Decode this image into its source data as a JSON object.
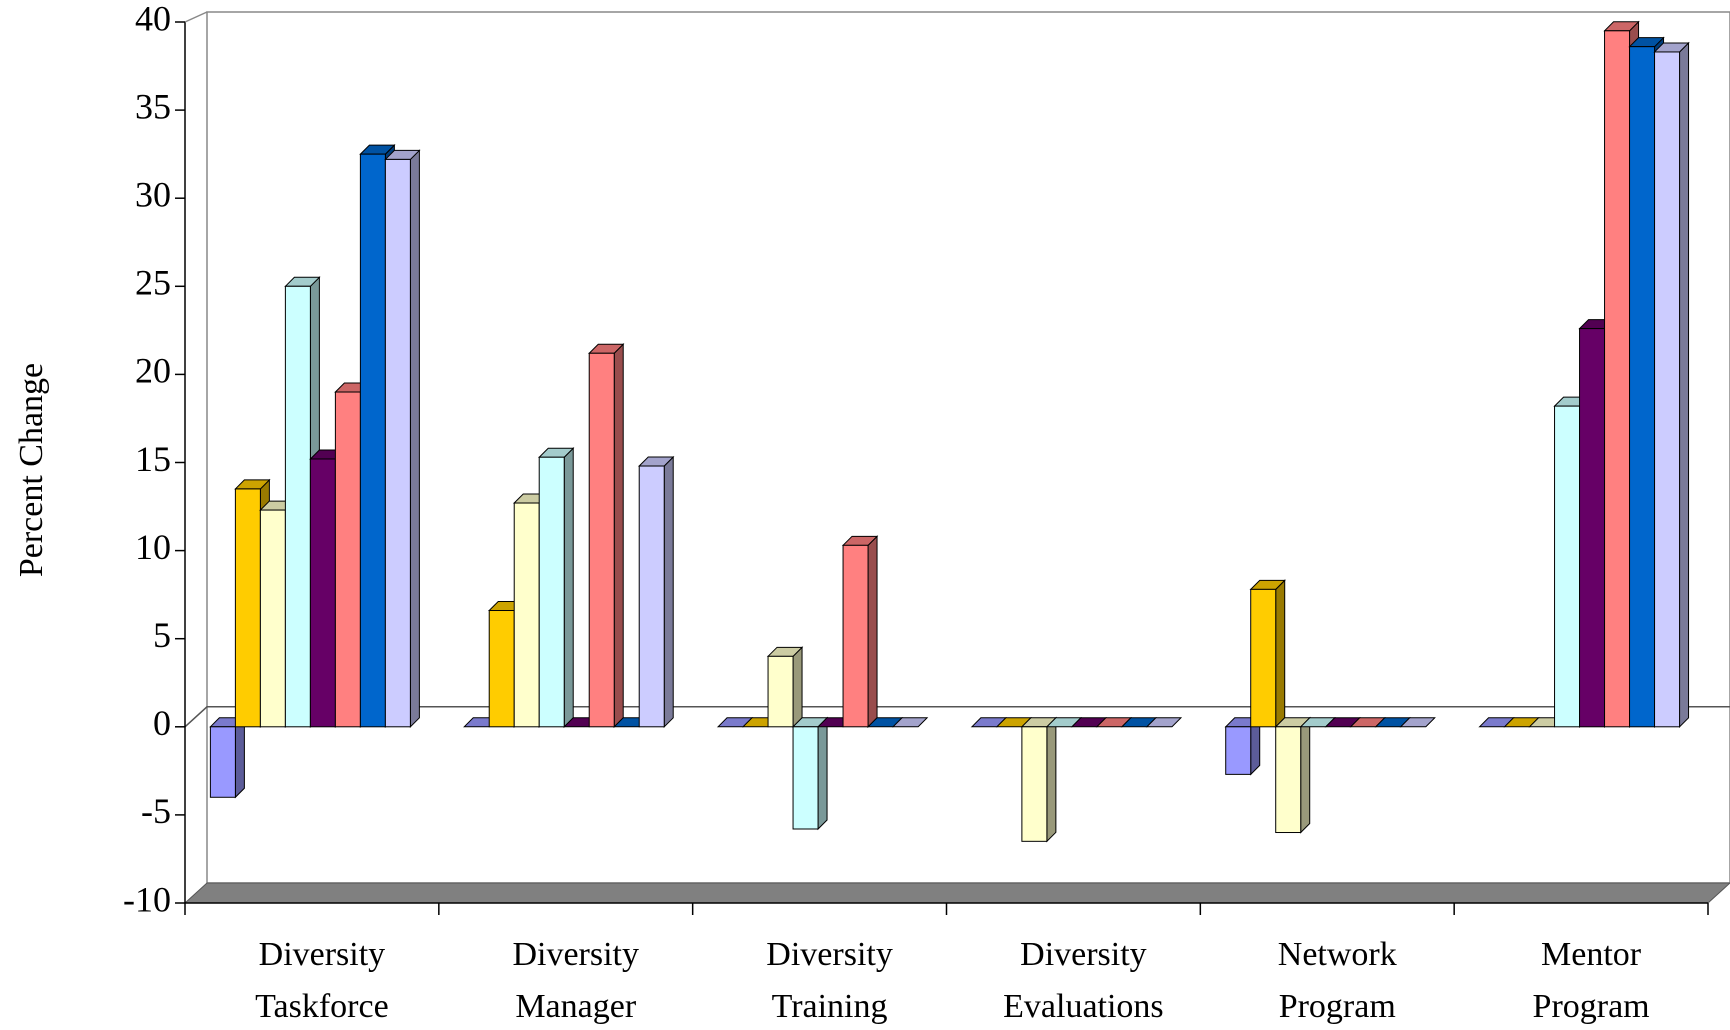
{
  "chart_data": {
    "type": "bar3d",
    "y_label": "Percent Change",
    "categories": [
      [
        "Diversity",
        "Taskforce"
      ],
      [
        "Diversity",
        "Manager"
      ],
      [
        "Diversity",
        "Training"
      ],
      [
        "Diversity",
        "Evaluations"
      ],
      [
        "Network",
        "Program"
      ],
      [
        "Mentor",
        "Program"
      ]
    ],
    "series": [
      {
        "color": "#9999ff",
        "values": [
          -4,
          0,
          0,
          0,
          -2.7,
          0
        ]
      },
      {
        "color": "#ffcc00",
        "values": [
          13.5,
          6.6,
          0,
          0,
          7.8,
          0
        ]
      },
      {
        "color": "#ffffcc",
        "values": [
          12.3,
          12.7,
          4,
          -6.5,
          -6,
          0
        ]
      },
      {
        "color": "#ccffff",
        "values": [
          25,
          15.3,
          -5.8,
          0,
          0,
          18.2
        ]
      },
      {
        "color": "#660066",
        "values": [
          15.2,
          0,
          0,
          0,
          0,
          22.6
        ]
      },
      {
        "color": "#ff8080",
        "values": [
          19,
          21.2,
          10.3,
          0,
          0,
          39.5
        ]
      },
      {
        "color": "#0066cc",
        "values": [
          32.5,
          0,
          0,
          0,
          0,
          38.6
        ]
      },
      {
        "color": "#ccccff",
        "values": [
          32.2,
          14.8,
          0,
          0,
          0,
          38.3
        ]
      }
    ],
    "ylim": [
      -10,
      40
    ],
    "yticks": [
      -10,
      -5,
      0,
      5,
      10,
      15,
      20,
      25,
      30,
      35,
      40
    ]
  }
}
